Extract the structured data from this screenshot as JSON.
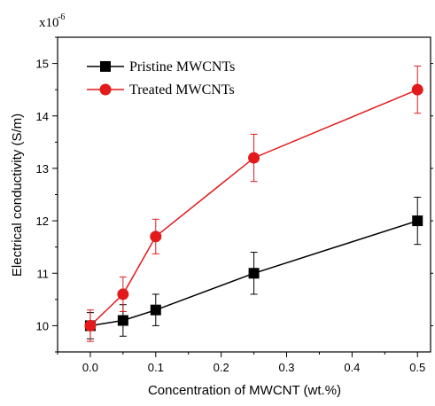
{
  "chart_data": {
    "type": "line",
    "xlabel": "Concentration of MWCNT (wt.%)",
    "ylabel": "Electrical conductivity (S/m)",
    "y_multiplier": "x10",
    "y_multiplier_exp": "-6",
    "xlim": [
      -0.05,
      0.52
    ],
    "ylim": [
      9.5,
      15.5
    ],
    "xticks": [
      "0.0",
      "0.1",
      "0.2",
      "0.3",
      "0.4",
      "0.5"
    ],
    "yticks": [
      "10",
      "11",
      "12",
      "13",
      "14",
      "15"
    ],
    "legend_position": "top-left",
    "series": [
      {
        "name": "Pristine MWCNTs",
        "color": "#000000",
        "marker": "square",
        "x": [
          0.0,
          0.05,
          0.1,
          0.25,
          0.5
        ],
        "y": [
          10.0,
          10.1,
          10.3,
          11.0,
          12.0
        ],
        "err": [
          0.25,
          0.3,
          0.3,
          0.4,
          0.45
        ]
      },
      {
        "name": "Treated MWCNTs",
        "color": "#e31a1c",
        "marker": "circle",
        "x": [
          0.0,
          0.05,
          0.1,
          0.25,
          0.5
        ],
        "y": [
          10.0,
          10.6,
          11.7,
          13.2,
          14.5
        ],
        "err": [
          0.3,
          0.33,
          0.33,
          0.45,
          0.45
        ]
      }
    ]
  }
}
